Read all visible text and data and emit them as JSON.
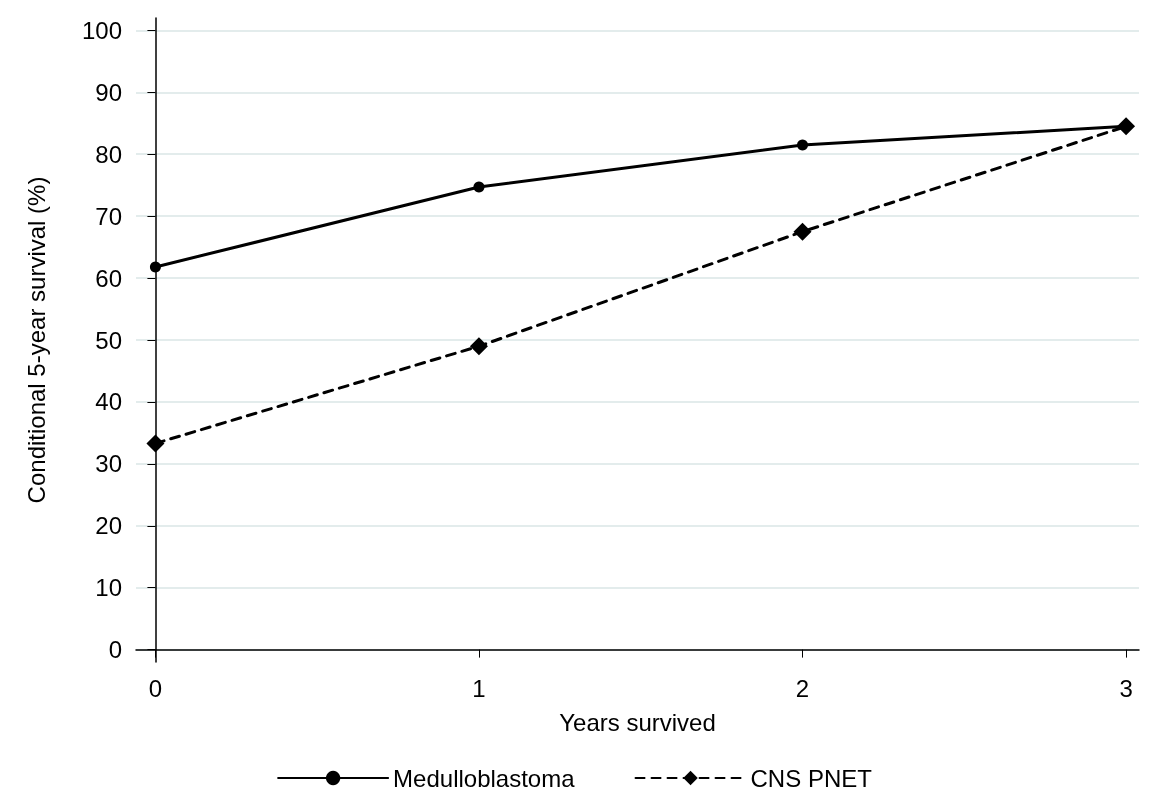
{
  "chart_data": {
    "type": "line",
    "xlabel": "Years survived",
    "ylabel": "Conditional 5-year survival (%)",
    "x": [
      0,
      1,
      2,
      3
    ],
    "series": [
      {
        "name": "Medulloblastoma",
        "color": "#000000",
        "values": [
          61.8,
          74.7,
          81.5,
          84.5
        ],
        "marker": "circle",
        "line_style": "solid"
      },
      {
        "name": "CNS PNET",
        "color": "#000000",
        "values": [
          33.3,
          49.0,
          67.5,
          84.5
        ],
        "marker": "diamond",
        "line_style": "dashed"
      }
    ],
    "xlim": [
      -0.06,
      3.04
    ],
    "xticks": [
      0,
      1,
      2,
      3
    ],
    "ylim": [
      -2,
      102
    ],
    "yticks": [
      0,
      10,
      20,
      30,
      40,
      50,
      60,
      70,
      80,
      90,
      100
    ],
    "grid": "y",
    "legend": "bottom"
  }
}
